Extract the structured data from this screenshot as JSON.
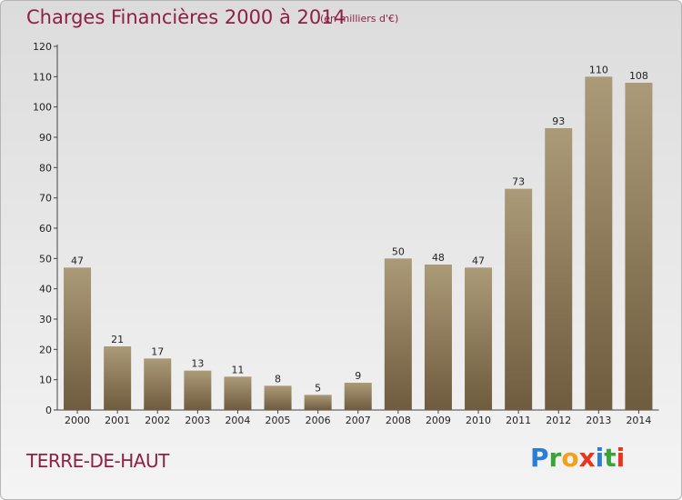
{
  "header": {
    "title": "Charges Financières 2000 à 2014",
    "subtitle": "(en milliers d'€)"
  },
  "footer": {
    "location": "TERRE-DE-HAUT",
    "logo_letters": [
      "P",
      "r",
      "o",
      "x",
      "i",
      "t",
      "i"
    ],
    "logo_colors": [
      "#2a7fd4",
      "#3aa33a",
      "#f2a11c",
      "#e8361e",
      "#2a7fd4",
      "#3aa33a",
      "#e8361e"
    ]
  },
  "colors": {
    "title": "#8e1f45",
    "bar_top": "#ab9a78",
    "bar_bottom": "#6f5b3e"
  },
  "chart_data": {
    "type": "bar",
    "title": "Charges Financières 2000 à 2014",
    "subtitle": "(en milliers d'€)",
    "categories": [
      "2000",
      "2001",
      "2002",
      "2003",
      "2004",
      "2005",
      "2006",
      "2007",
      "2008",
      "2009",
      "2010",
      "2011",
      "2012",
      "2013",
      "2014"
    ],
    "values": [
      47,
      21,
      17,
      13,
      11,
      8,
      5,
      9,
      50,
      48,
      47,
      73,
      93,
      110,
      108
    ],
    "yticks": [
      0,
      10,
      20,
      30,
      40,
      50,
      60,
      70,
      80,
      90,
      100,
      110,
      120
    ],
    "ylim": [
      0,
      120
    ],
    "grid": false,
    "data_labels": true
  }
}
